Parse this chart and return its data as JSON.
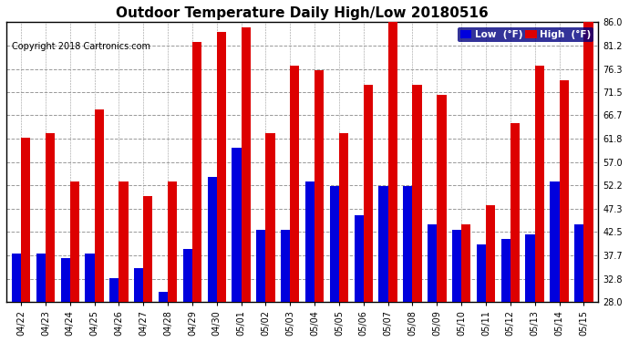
{
  "title": "Outdoor Temperature Daily High/Low 20180516",
  "copyright": "Copyright 2018 Cartronics.com",
  "dates": [
    "04/22",
    "04/23",
    "04/24",
    "04/25",
    "04/26",
    "04/27",
    "04/28",
    "04/29",
    "04/30",
    "05/01",
    "05/02",
    "05/03",
    "05/04",
    "05/05",
    "05/06",
    "05/07",
    "05/08",
    "05/09",
    "05/10",
    "05/11",
    "05/12",
    "05/13",
    "05/14",
    "05/15"
  ],
  "highs": [
    62,
    63,
    53,
    68,
    53,
    50,
    53,
    82,
    84,
    85,
    63,
    77,
    76,
    63,
    73,
    86,
    73,
    71,
    44,
    48,
    65,
    77,
    74,
    86
  ],
  "lows": [
    38,
    38,
    37,
    38,
    33,
    35,
    30,
    39,
    54,
    60,
    43,
    43,
    53,
    52,
    46,
    52,
    52,
    44,
    43,
    40,
    41,
    42,
    53,
    44
  ],
  "ymin": 28.0,
  "ylim": [
    28.0,
    86.0
  ],
  "yticks": [
    28.0,
    32.8,
    37.7,
    42.5,
    47.3,
    52.2,
    57.0,
    61.8,
    66.7,
    71.5,
    76.3,
    81.2,
    86.0
  ],
  "ytick_labels": [
    "28.0",
    "32.8",
    "37.7",
    "42.5",
    "47.3",
    "52.2",
    "57.0",
    "61.8",
    "66.7",
    "71.5",
    "76.3",
    "81.2",
    "86.0"
  ],
  "bar_width": 0.38,
  "low_color": "#0000dd",
  "high_color": "#dd0000",
  "bg_color": "#ffffff",
  "grid_color": "#999999",
  "title_fontsize": 11,
  "tick_fontsize": 7,
  "copyright_fontsize": 7,
  "legend_low_label": "Low  (°F)",
  "legend_high_label": "High  (°F)"
}
